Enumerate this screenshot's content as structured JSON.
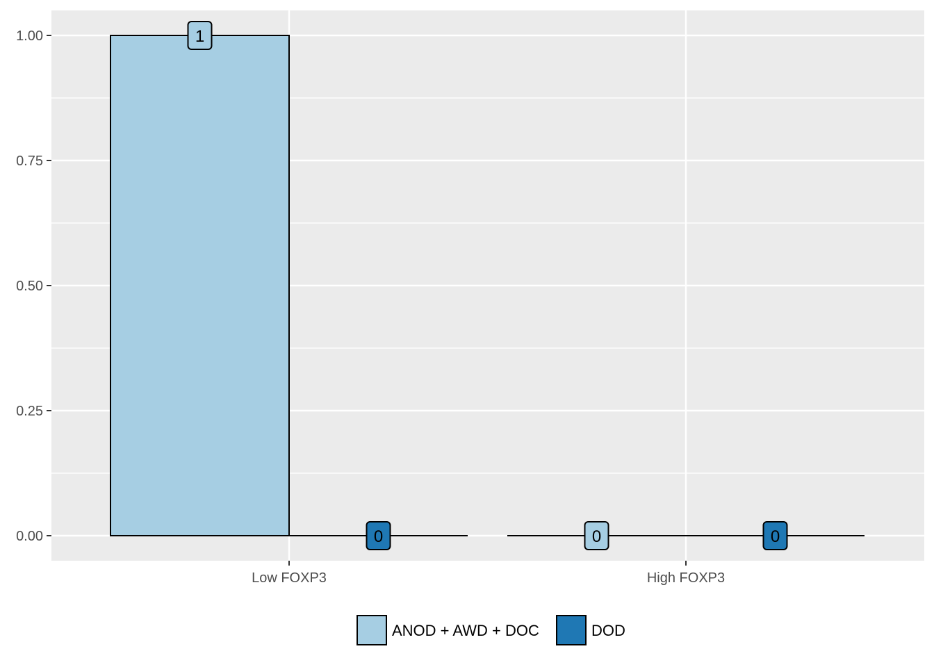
{
  "chart_data": {
    "type": "bar",
    "categories": [
      "Low FOXP3",
      "High FOXP3"
    ],
    "series": [
      {
        "name": "ANOD + AWD + DOC",
        "values": [
          1,
          0
        ],
        "labels": [
          "1",
          "0"
        ],
        "color": "#a6cee3"
      },
      {
        "name": "DOD",
        "values": [
          0,
          0
        ],
        "labels": [
          "0",
          "0"
        ],
        "color": "#1f78b4"
      }
    ],
    "xlabel": "",
    "ylabel": "",
    "ylim": [
      0,
      1
    ],
    "yticks": [
      0,
      0.25,
      0.5,
      0.75,
      1
    ],
    "ytick_labels": [
      "0.00",
      "0.25",
      "0.50",
      "0.75",
      "1.00"
    ],
    "grid": true,
    "legend": "bottom",
    "colors": {
      "panel": "#ebebeb",
      "grid": "#ffffff",
      "text": "#4d4d4d"
    }
  }
}
